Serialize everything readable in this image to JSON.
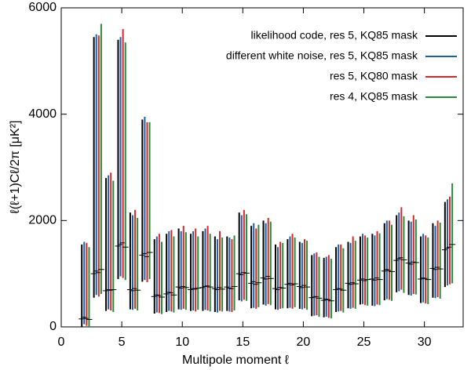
{
  "chart_data": {
    "type": "errorbar",
    "xlabel": "Multipole moment ℓ",
    "ylabel": "ℓ(ℓ+1)Cℓ/2π [μK²]",
    "xlim": [
      0,
      33.2
    ],
    "xticks": [
      0,
      5,
      10,
      15,
      20,
      25,
      30
    ],
    "ylim": [
      0,
      6000
    ],
    "yticks": [
      0,
      2000,
      4000,
      6000
    ],
    "legend": "upper right",
    "x": [
      2,
      3,
      4,
      5,
      6,
      7,
      8,
      9,
      10,
      11,
      12,
      13,
      14,
      15,
      16,
      17,
      18,
      19,
      20,
      21,
      22,
      23,
      24,
      25,
      26,
      27,
      28,
      29,
      30,
      31,
      32
    ],
    "series": [
      {
        "name": "likelihood code, res 5, KQ85 mask",
        "color": "#000000",
        "values": [
          150,
          1000,
          680,
          1520,
          700,
          1350,
          570,
          620,
          750,
          700,
          740,
          720,
          750,
          1000,
          820,
          920,
          720,
          800,
          760,
          550,
          500,
          700,
          820,
          880,
          900,
          1050,
          1250,
          1200,
          900,
          1100,
          1450
        ],
        "low": [
          0,
          550,
          300,
          900,
          330,
          850,
          250,
          280,
          330,
          300,
          300,
          280,
          300,
          500,
          350,
          420,
          330,
          350,
          340,
          200,
          180,
          280,
          350,
          420,
          400,
          500,
          650,
          600,
          450,
          550,
          750
        ],
        "high": [
          1550,
          5450,
          2800,
          5400,
          2150,
          3900,
          1650,
          1750,
          1850,
          1750,
          1800,
          1700,
          1700,
          2150,
          1900,
          2000,
          1550,
          1650,
          1600,
          1350,
          1300,
          1500,
          1600,
          1700,
          1750,
          1950,
          2100,
          2000,
          1700,
          1950,
          2350
        ]
      },
      {
        "name": "different white noise, res 5, KQ85 mask",
        "color": "#1f5fa8",
        "values": [
          180,
          1050,
          700,
          1550,
          680,
          1380,
          600,
          650,
          730,
          720,
          760,
          700,
          730,
          980,
          850,
          900,
          700,
          820,
          740,
          560,
          520,
          720,
          800,
          900,
          880,
          1080,
          1280,
          1180,
          920,
          1080,
          1480
        ],
        "low": [
          50,
          600,
          330,
          950,
          320,
          880,
          270,
          300,
          320,
          310,
          320,
          270,
          290,
          480,
          360,
          400,
          320,
          360,
          330,
          210,
          190,
          290,
          340,
          430,
          390,
          520,
          670,
          590,
          460,
          540,
          780
        ],
        "high": [
          1600,
          5500,
          2850,
          5450,
          2100,
          3950,
          1700,
          1800,
          1800,
          1800,
          1850,
          1650,
          1680,
          2100,
          1950,
          1950,
          1500,
          1700,
          1580,
          1380,
          1320,
          1550,
          1580,
          1750,
          1720,
          2000,
          2150,
          1980,
          1750,
          1900,
          2400
        ]
      },
      {
        "name": "res 5, KQ80 mask",
        "color": "#d62728",
        "values": [
          160,
          1020,
          690,
          1580,
          720,
          1320,
          590,
          640,
          760,
          710,
          770,
          740,
          720,
          1020,
          800,
          950,
          740,
          790,
          780,
          570,
          510,
          710,
          830,
          870,
          920,
          1060,
          1300,
          1220,
          910,
          1120,
          1500
        ],
        "low": [
          20,
          570,
          310,
          920,
          340,
          840,
          260,
          290,
          340,
          290,
          310,
          300,
          280,
          510,
          340,
          430,
          340,
          340,
          350,
          220,
          170,
          300,
          360,
          410,
          420,
          510,
          700,
          620,
          440,
          560,
          800
        ],
        "high": [
          1580,
          5480,
          2900,
          5600,
          2200,
          3850,
          1750,
          1820,
          1900,
          1850,
          1900,
          1800,
          1650,
          2200,
          1850,
          2050,
          1600,
          1750,
          1650,
          1400,
          1350,
          1550,
          1700,
          1720,
          1800,
          2000,
          2250,
          2100,
          1720,
          2000,
          2450
        ]
      },
      {
        "name": "res 4, KQ85 mask",
        "color": "#2a8a3a",
        "values": [
          140,
          1080,
          700,
          1500,
          690,
          1400,
          560,
          600,
          740,
          730,
          750,
          710,
          760,
          1010,
          830,
          910,
          730,
          810,
          750,
          540,
          490,
          690,
          810,
          890,
          890,
          1040,
          1260,
          1210,
          890,
          1090,
          1550
        ],
        "low": [
          0,
          620,
          280,
          880,
          310,
          900,
          240,
          270,
          320,
          320,
          290,
          290,
          310,
          490,
          370,
          410,
          350,
          370,
          320,
          190,
          160,
          270,
          340,
          400,
          410,
          490,
          640,
          610,
          430,
          530,
          820
        ],
        "high": [
          1500,
          5700,
          2750,
          5350,
          2050,
          3850,
          1600,
          1700,
          1780,
          1700,
          1750,
          1680,
          1720,
          2120,
          1920,
          1980,
          1580,
          1680,
          1620,
          1320,
          1280,
          1480,
          1620,
          1680,
          1760,
          1920,
          2080,
          2020,
          1680,
          1960,
          2700
        ]
      }
    ]
  }
}
